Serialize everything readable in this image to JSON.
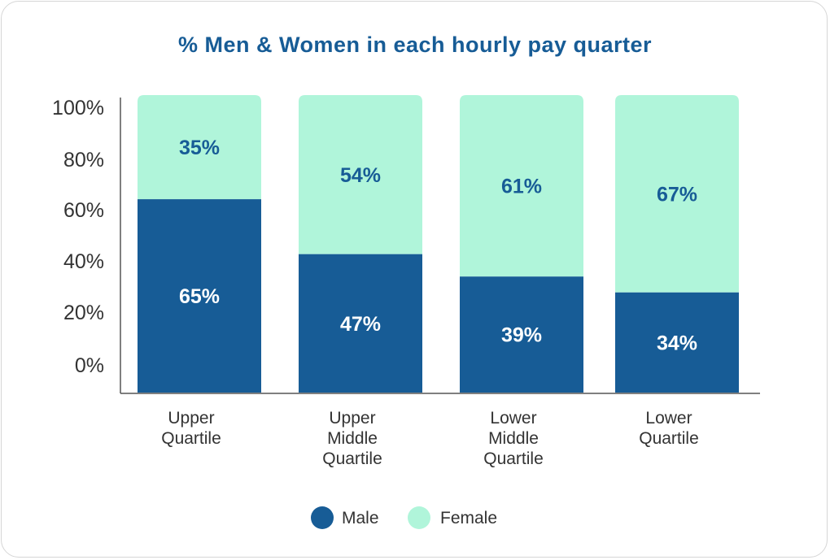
{
  "chart_data": {
    "type": "bar",
    "stacked": true,
    "title": "% Men & Women in each hourly pay quarter",
    "categories": [
      [
        "Upper",
        "Quartile"
      ],
      [
        "Upper",
        "Middle",
        "Quartile"
      ],
      [
        "Lower",
        "Middle",
        "Quartile"
      ],
      [
        "Lower",
        "Quartile"
      ]
    ],
    "series": [
      {
        "name": "Male",
        "values": [
          65,
          47,
          39,
          34
        ],
        "labels": [
          "65%",
          "47%",
          "39%",
          "34%"
        ],
        "color": "#175c96",
        "label_color": "#ffffff"
      },
      {
        "name": "Female",
        "values": [
          35,
          54,
          61,
          67
        ],
        "labels": [
          "35%",
          "54%",
          "61%",
          "67%"
        ],
        "color": "#b0f5da",
        "label_color": "#175c96"
      }
    ],
    "ylim": [
      0,
      100
    ],
    "yticks": [
      "0%",
      "20%",
      "40%",
      "60%",
      "80%",
      "100%"
    ],
    "grid": false,
    "legend": "bottom-center",
    "title_color": "#175c96"
  }
}
